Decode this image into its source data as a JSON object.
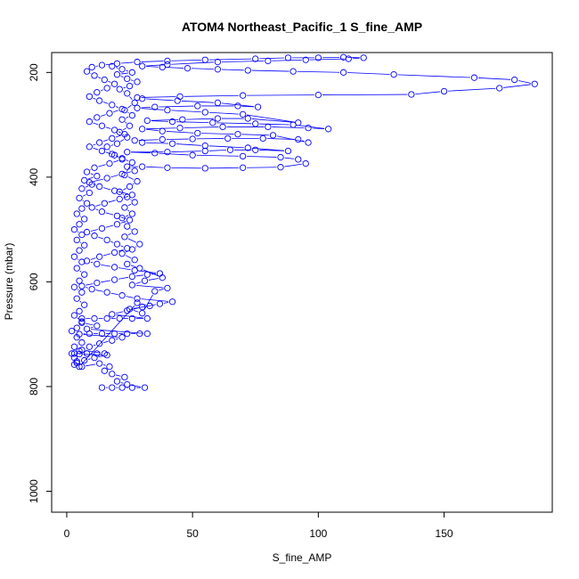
{
  "chart_data": {
    "type": "scatter",
    "title": "ATOM4 Northeast_Pacific_1 S_fine_AMP",
    "xlabel": "S_fine_AMP",
    "ylabel": "Pressure (mbar)",
    "xlim": [
      -6,
      193
    ],
    "ylim": [
      1040,
      162
    ],
    "y_reversed": true,
    "x_ticks": [
      0,
      50,
      100,
      150
    ],
    "y_ticks": [
      200,
      400,
      600,
      800,
      1000
    ],
    "grid": false,
    "point_color": "#0000ff",
    "line_color": "#0000ff",
    "series": [
      {
        "points": [
          [
            14,
            802
          ],
          [
            18,
            802
          ],
          [
            22,
            802
          ],
          [
            26,
            802
          ],
          [
            31,
            802
          ],
          [
            24,
            796
          ],
          [
            20,
            790
          ],
          [
            23,
            782
          ],
          [
            18,
            776
          ],
          [
            15,
            770
          ],
          [
            17,
            762
          ],
          [
            13,
            756
          ],
          [
            6,
            762
          ],
          [
            4,
            755
          ],
          [
            7,
            750
          ],
          [
            11,
            745
          ],
          [
            16,
            740
          ],
          [
            5,
            738
          ],
          [
            3,
            737
          ],
          [
            8,
            737
          ],
          [
            12,
            737
          ],
          [
            15,
            737
          ],
          [
            6,
            730
          ],
          [
            9,
            724
          ],
          [
            13,
            718
          ],
          [
            18,
            712
          ],
          [
            22,
            706
          ],
          [
            5,
            700
          ],
          [
            9,
            699
          ],
          [
            14,
            699
          ],
          [
            19,
            699
          ],
          [
            24,
            699
          ],
          [
            29,
            699
          ],
          [
            32,
            699
          ],
          [
            8,
            690
          ],
          [
            12,
            684
          ],
          [
            6,
            678
          ],
          [
            6,
            670
          ],
          [
            11,
            670
          ],
          [
            16,
            670
          ],
          [
            21,
            670
          ],
          [
            26,
            670
          ],
          [
            32,
            670
          ],
          [
            18,
            662
          ],
          [
            24,
            655
          ],
          [
            30,
            648
          ],
          [
            37,
            642
          ],
          [
            42,
            638
          ],
          [
            28,
            632
          ],
          [
            22,
            626
          ],
          [
            16,
            620
          ],
          [
            10,
            614
          ],
          [
            6,
            608
          ],
          [
            12,
            602
          ],
          [
            19,
            596
          ],
          [
            26,
            590
          ],
          [
            32,
            586
          ],
          [
            37,
            584
          ],
          [
            27,
            578
          ],
          [
            19,
            572
          ],
          [
            12,
            566
          ],
          [
            8,
            560
          ],
          [
            13,
            552
          ],
          [
            19,
            544
          ],
          [
            24,
            536
          ],
          [
            20,
            528
          ],
          [
            16,
            520
          ],
          [
            11,
            512
          ],
          [
            8,
            505
          ],
          [
            14,
            498
          ],
          [
            20,
            490
          ],
          [
            25,
            482
          ],
          [
            20,
            474
          ],
          [
            14,
            466
          ],
          [
            10,
            458
          ],
          [
            15,
            450
          ],
          [
            21,
            442
          ],
          [
            26,
            434
          ],
          [
            19,
            426
          ],
          [
            13,
            418
          ],
          [
            9,
            410
          ],
          [
            16,
            402
          ],
          [
            22,
            394
          ],
          [
            27,
            388
          ],
          [
            24,
            380
          ],
          [
            30,
            380
          ],
          [
            40,
            382
          ],
          [
            55,
            383
          ],
          [
            70,
            382
          ],
          [
            85,
            381
          ],
          [
            95,
            374
          ],
          [
            92,
            366
          ],
          [
            85,
            362
          ],
          [
            70,
            360
          ],
          [
            50,
            358
          ],
          [
            35,
            354
          ],
          [
            24,
            352
          ],
          [
            40,
            352
          ],
          [
            55,
            350
          ],
          [
            65,
            348
          ],
          [
            75,
            348
          ],
          [
            88,
            350
          ],
          [
            72,
            344
          ],
          [
            55,
            340
          ],
          [
            42,
            336
          ],
          [
            30,
            334
          ],
          [
            27,
            330
          ],
          [
            38,
            328
          ],
          [
            50,
            327
          ],
          [
            64,
            326
          ],
          [
            78,
            326
          ],
          [
            92,
            328
          ],
          [
            96,
            334
          ],
          [
            82,
            320
          ],
          [
            68,
            318
          ],
          [
            52,
            316
          ],
          [
            38,
            312
          ],
          [
            30,
            308
          ],
          [
            45,
            306
          ],
          [
            62,
            304
          ],
          [
            80,
            304
          ],
          [
            96,
            306
          ],
          [
            104,
            308
          ],
          [
            90,
            300
          ],
          [
            75,
            298
          ],
          [
            58,
            296
          ],
          [
            42,
            294
          ],
          [
            32,
            292
          ],
          [
            46,
            290
          ],
          [
            60,
            288
          ],
          [
            72,
            288
          ],
          [
            92,
            296
          ],
          [
            70,
            280
          ],
          [
            55,
            276
          ],
          [
            40,
            272
          ],
          [
            28,
            268
          ],
          [
            35,
            266
          ],
          [
            52,
            264
          ],
          [
            68,
            264
          ],
          [
            76,
            266
          ],
          [
            60,
            258
          ],
          [
            44,
            254
          ],
          [
            30,
            250
          ],
          [
            28,
            248
          ],
          [
            45,
            246
          ],
          [
            70,
            244
          ],
          [
            100,
            243
          ],
          [
            137,
            242
          ],
          [
            150,
            236
          ],
          [
            172,
            230
          ],
          [
            186,
            222
          ],
          [
            178,
            214
          ],
          [
            162,
            210
          ],
          [
            130,
            204
          ],
          [
            110,
            200
          ],
          [
            90,
            198
          ],
          [
            72,
            196
          ],
          [
            60,
            194
          ],
          [
            48,
            192
          ],
          [
            38,
            190
          ],
          [
            30,
            188
          ],
          [
            40,
            185
          ],
          [
            60,
            180
          ],
          [
            80,
            178
          ],
          [
            95,
            176
          ],
          [
            112,
            174
          ],
          [
            118,
            172
          ],
          [
            110,
            171
          ],
          [
            100,
            172
          ],
          [
            88,
            172
          ],
          [
            75,
            174
          ],
          [
            55,
            176
          ],
          [
            40,
            178
          ],
          [
            28,
            180
          ],
          [
            20,
            183
          ],
          [
            14,
            186
          ],
          [
            10,
            190
          ],
          [
            8,
            198
          ],
          [
            11,
            206
          ],
          [
            15,
            214
          ],
          [
            19,
            222
          ],
          [
            16,
            230
          ],
          [
            12,
            238
          ],
          [
            9,
            246
          ],
          [
            13,
            254
          ],
          [
            18,
            262
          ],
          [
            22,
            270
          ],
          [
            17,
            278
          ],
          [
            12,
            286
          ],
          [
            9,
            294
          ],
          [
            14,
            302
          ],
          [
            19,
            310
          ],
          [
            23,
            318
          ],
          [
            18,
            326
          ],
          [
            13,
            334
          ],
          [
            9,
            342
          ],
          [
            14,
            350
          ],
          [
            19,
            358
          ],
          [
            22,
            366
          ],
          [
            17,
            374
          ],
          [
            11,
            382
          ],
          [
            8,
            390
          ],
          [
            12,
            398
          ],
          [
            7,
            406
          ],
          [
            10,
            414
          ],
          [
            6,
            422
          ],
          [
            9,
            430
          ],
          [
            5,
            440
          ],
          [
            8,
            450
          ],
          [
            6,
            460
          ],
          [
            4,
            470
          ],
          [
            7,
            480
          ],
          [
            5,
            490
          ],
          [
            3,
            500
          ],
          [
            6,
            510
          ],
          [
            4,
            520
          ],
          [
            7,
            530
          ],
          [
            5,
            540
          ],
          [
            3,
            552
          ],
          [
            6,
            562
          ],
          [
            4,
            574
          ],
          [
            7,
            586
          ],
          [
            5,
            598
          ],
          [
            3,
            610
          ],
          [
            6,
            620
          ],
          [
            4,
            632
          ],
          [
            7,
            644
          ],
          [
            5,
            656
          ],
          [
            3,
            664
          ],
          [
            6,
            676
          ],
          [
            4,
            688
          ],
          [
            2,
            694
          ],
          [
            4,
            706
          ],
          [
            6,
            716
          ],
          [
            3,
            724
          ],
          [
            5,
            732
          ],
          [
            2,
            737
          ],
          [
            3,
            745
          ],
          [
            4,
            752
          ],
          [
            3,
            758
          ],
          [
            5,
            762
          ],
          [
            28,
            640
          ],
          [
            33,
            646
          ],
          [
            25,
            652
          ],
          [
            30,
            660
          ],
          [
            35,
            618
          ],
          [
            40,
            612
          ],
          [
            26,
            606
          ],
          [
            31,
            598
          ],
          [
            38,
            592
          ],
          [
            29,
            574
          ],
          [
            24,
            566
          ],
          [
            27,
            558
          ],
          [
            22,
            546
          ],
          [
            26,
            538
          ],
          [
            29,
            528
          ],
          [
            23,
            514
          ],
          [
            27,
            504
          ],
          [
            24,
            494
          ],
          [
            22,
            478
          ],
          [
            26,
            470
          ],
          [
            23,
            458
          ],
          [
            27,
            448
          ],
          [
            24,
            438
          ],
          [
            21,
            428
          ],
          [
            25,
            418
          ],
          [
            28,
            408
          ],
          [
            23,
            396
          ],
          [
            26,
            372
          ],
          [
            22,
            364
          ],
          [
            18,
            356
          ],
          [
            16,
            342
          ],
          [
            20,
            336
          ],
          [
            24,
            324
          ],
          [
            21,
            314
          ],
          [
            25,
            302
          ],
          [
            22,
            290
          ],
          [
            26,
            282
          ],
          [
            23,
            272
          ],
          [
            27,
            258
          ],
          [
            24,
            240
          ],
          [
            21,
            232
          ],
          [
            25,
            226
          ],
          [
            28,
            218
          ],
          [
            24,
            212
          ],
          [
            20,
            204
          ],
          [
            26,
            200
          ],
          [
            22,
            194
          ],
          [
            18,
            188
          ]
        ]
      }
    ]
  }
}
